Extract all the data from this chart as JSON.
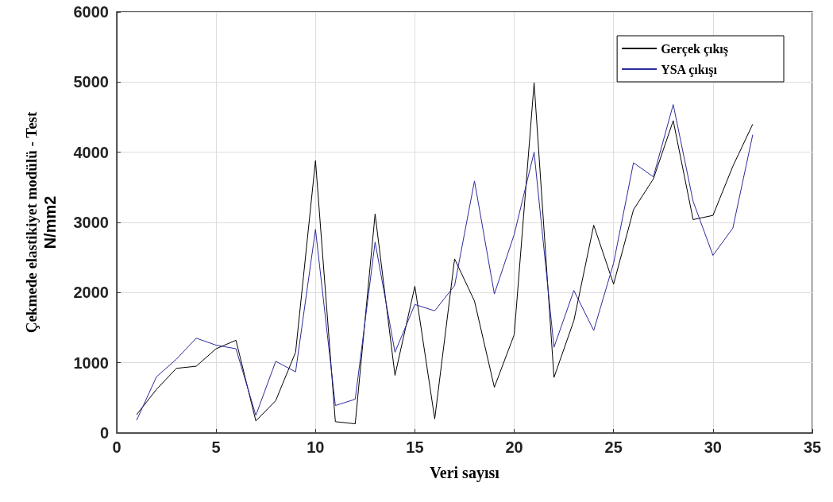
{
  "chart_data": {
    "type": "line",
    "xlabel": "Veri sayısı",
    "ylabel": "Çekmede elastikiyet modülü - Test\nN/mm2",
    "x": [
      1,
      2,
      3,
      4,
      5,
      6,
      7,
      8,
      9,
      10,
      11,
      12,
      13,
      14,
      15,
      16,
      17,
      18,
      19,
      20,
      21,
      22,
      23,
      24,
      25,
      26,
      27,
      28,
      29,
      30,
      31,
      32
    ],
    "series": [
      {
        "name": "Gerçek çıkış",
        "color": "#000000",
        "values": [
          260,
          620,
          920,
          950,
          1200,
          1320,
          170,
          460,
          1150,
          3880,
          160,
          130,
          3120,
          820,
          2090,
          200,
          2480,
          1880,
          650,
          1400,
          4990,
          790,
          1600,
          2960,
          2120,
          3180,
          3620,
          4450,
          3040,
          3100,
          3800,
          4400
        ]
      },
      {
        "name": "YSA çıkışı",
        "color": "#2b2b9c",
        "values": [
          180,
          800,
          1050,
          1350,
          1250,
          1200,
          250,
          1020,
          870,
          2900,
          390,
          480,
          2720,
          1150,
          1830,
          1740,
          2100,
          3590,
          1980,
          2830,
          4000,
          1220,
          2030,
          1460,
          2420,
          3850,
          3650,
          4680,
          3300,
          2530,
          2920,
          4250
        ]
      }
    ],
    "xlim": [
      0,
      35
    ],
    "xticks": [
      0,
      5,
      10,
      15,
      20,
      25,
      30,
      35
    ],
    "ylim": [
      0,
      6000
    ],
    "yticks": [
      0,
      1000,
      2000,
      3000,
      4000,
      5000,
      6000
    ],
    "grid": true,
    "legend": "top right",
    "marker": "none",
    "line_style": "solid"
  }
}
